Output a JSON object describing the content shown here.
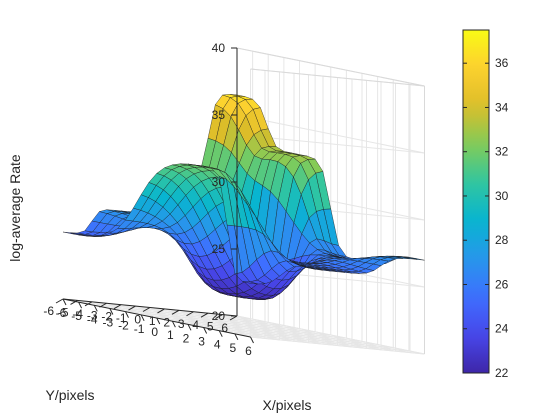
{
  "chart_data": {
    "type": "surface",
    "title": "",
    "xlabel": "X/pixels",
    "ylabel": "Y/pixels",
    "zlabel": "log-average Rate",
    "xlim": [
      -6,
      6
    ],
    "ylim": [
      -6,
      6
    ],
    "zlim": [
      20,
      40
    ],
    "x_ticks": [
      "-6",
      "-5",
      "-4",
      "-3",
      "-2",
      "-1",
      "0",
      "1",
      "2",
      "3",
      "4",
      "5",
      "6"
    ],
    "y_ticks": [
      "6",
      "5",
      "4",
      "3",
      "2",
      "1",
      "0",
      "-1",
      "-2",
      "-3",
      "-4",
      "-5",
      "-6"
    ],
    "z_ticks": [
      "20",
      "25",
      "30",
      "35",
      "40"
    ],
    "grid": true,
    "colormap": "parula",
    "colorbar": {
      "range": [
        22,
        37.5
      ],
      "ticks": [
        "22",
        "24",
        "26",
        "28",
        "30",
        "32",
        "34",
        "36"
      ]
    },
    "mesh_spacing": 0.5,
    "surface_description": "bowl-shaped rate surface: minimum ~22 near (X=-1.5, Y=1.5), rising to ~36-37 at the corner X=-6,Y=6, ~33 along the Y=6 edge, ~32 near (X=3,Y=-6) and ~27 along the X=6 edge",
    "control_points": [
      {
        "x": -6,
        "y": 6,
        "z": 36.5
      },
      {
        "x": -6,
        "y": 2,
        "z": 30
      },
      {
        "x": -6,
        "y": -2,
        "z": 27
      },
      {
        "x": -6,
        "y": -6,
        "z": 25
      },
      {
        "x": -2,
        "y": 6,
        "z": 33
      },
      {
        "x": 2,
        "y": 6,
        "z": 26
      },
      {
        "x": 6,
        "y": 6,
        "z": 27
      },
      {
        "x": -1.5,
        "y": 1.5,
        "z": 22
      },
      {
        "x": 3,
        "y": -6,
        "z": 32
      },
      {
        "x": 6,
        "y": -6,
        "z": 24
      },
      {
        "x": 6,
        "y": 0,
        "z": 25.5
      }
    ]
  }
}
